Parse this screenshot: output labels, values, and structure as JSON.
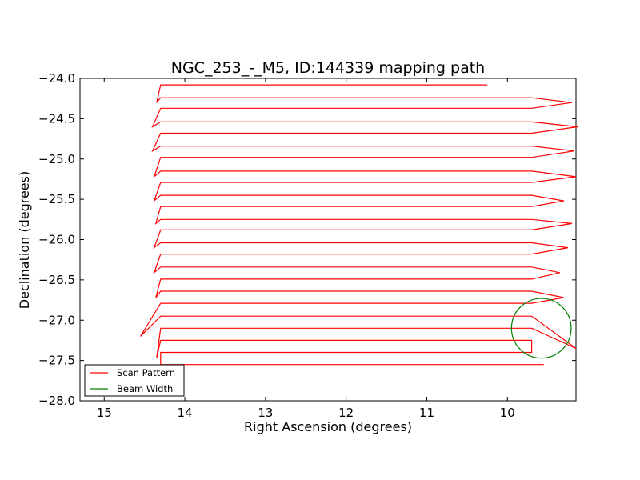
{
  "chart_data": {
    "type": "line",
    "title": "NGC_253_-_M5, ID:144339 mapping path",
    "xlabel": "Right Ascension (degrees)",
    "ylabel": "Declination (degrees)",
    "xlim": [
      15.3,
      9.15
    ],
    "ylim": [
      -28.0,
      -24.0
    ],
    "x_inverted": true,
    "xticks": [
      15,
      14,
      13,
      12,
      11,
      10
    ],
    "xtick_labels": [
      "15",
      "14",
      "13",
      "12",
      "11",
      "10"
    ],
    "yticks": [
      -24.0,
      -24.5,
      -25.0,
      -25.5,
      -26.0,
      -26.5,
      -27.0,
      -27.5,
      -28.0
    ],
    "ytick_labels": [
      "−24.0",
      "−24.5",
      "−25.0",
      "−25.5",
      "−26.0",
      "−26.5",
      "−27.0",
      "−27.5",
      "−28.0"
    ],
    "grid": false,
    "legend_position": "lower-left",
    "series": [
      {
        "name": "Scan Pattern",
        "color": "#ff0000",
        "kind": "raster-scan",
        "rows_dec": [
          -24.08,
          -24.24,
          -24.37,
          -24.54,
          -24.68,
          -24.84,
          -24.98,
          -25.15,
          -25.29,
          -25.45,
          -25.59,
          -25.75,
          -25.88,
          -26.04,
          -26.18,
          -26.34,
          -26.49,
          -26.64,
          -26.79,
          -26.95,
          -27.1,
          -27.25,
          -27.4,
          -27.55
        ],
        "ra_east": 14.3,
        "ra_west": 9.7,
        "turns": [
          {
            "side": "east",
            "ra": 14.35,
            "dec_mid": -24.3
          },
          {
            "side": "west",
            "ra": 9.2,
            "dec_mid": -24.3
          },
          {
            "side": "east",
            "ra": 14.4,
            "dec_mid": -24.6
          },
          {
            "side": "west",
            "ra": 9.13,
            "dec_mid": -24.6
          },
          {
            "side": "east",
            "ra": 14.4,
            "dec_mid": -24.9
          },
          {
            "side": "west",
            "ra": 9.17,
            "dec_mid": -24.9
          },
          {
            "side": "east",
            "ra": 14.38,
            "dec_mid": -25.22
          },
          {
            "side": "west",
            "ra": 9.15,
            "dec_mid": -25.22
          },
          {
            "side": "east",
            "ra": 14.38,
            "dec_mid": -25.52
          },
          {
            "side": "west",
            "ra": 9.3,
            "dec_mid": -25.52
          },
          {
            "side": "east",
            "ra": 14.36,
            "dec_mid": -25.8
          },
          {
            "side": "west",
            "ra": 9.2,
            "dec_mid": -25.8
          },
          {
            "side": "east",
            "ra": 14.38,
            "dec_mid": -26.1
          },
          {
            "side": "west",
            "ra": 9.25,
            "dec_mid": -26.1
          },
          {
            "side": "east",
            "ra": 14.38,
            "dec_mid": -26.41
          },
          {
            "side": "west",
            "ra": 9.35,
            "dec_mid": -26.41
          },
          {
            "side": "east",
            "ra": 14.36,
            "dec_mid": -26.72
          },
          {
            "side": "west",
            "ra": 9.3,
            "dec_mid": -26.72
          },
          {
            "side": "east",
            "ra": 14.55,
            "dec_mid": -27.2
          },
          {
            "side": "west",
            "ra": 9.15,
            "dec_mid": -27.35
          },
          {
            "side": "east",
            "ra": 14.35,
            "dec_mid": -27.47
          }
        ],
        "start": [
          10.25,
          -24.08
        ],
        "end": [
          9.55,
          -27.55
        ]
      },
      {
        "name": "Beam Width",
        "color": "#008000",
        "kind": "circle",
        "center": [
          9.58,
          -27.1
        ],
        "radius_dec": 0.37
      }
    ],
    "legend": [
      {
        "label": "Scan Pattern",
        "color": "#ff0000"
      },
      {
        "label": "Beam Width",
        "color": "#008000"
      }
    ]
  }
}
